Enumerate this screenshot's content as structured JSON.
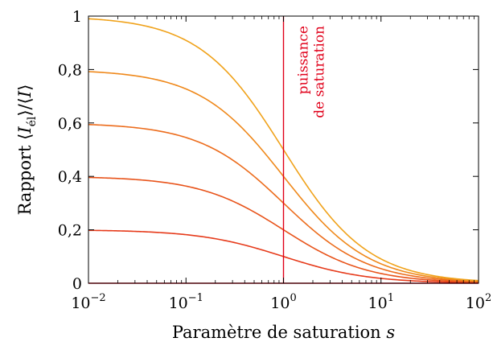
{
  "chart_data": {
    "type": "line",
    "xlabel": "Paramètre de saturation s",
    "ylabel": "Rapport ⟨I_él⟩/⟨I⟩",
    "ylabel_parts": {
      "prefix": "Rapport ⟨",
      "var": "I",
      "sub": "él",
      "middle": "⟩/⟨",
      "var2": "I",
      "suffix": "⟩"
    },
    "x_scale": "log",
    "xlim": [
      0.01,
      100
    ],
    "ylim": [
      0,
      1
    ],
    "x_ticks": [
      {
        "base": "10",
        "exp": "−2",
        "value": 0.01
      },
      {
        "base": "10",
        "exp": "−1",
        "value": 0.1
      },
      {
        "base": "10",
        "exp": "0",
        "value": 1
      },
      {
        "base": "10",
        "exp": "1",
        "value": 10
      },
      {
        "base": "10",
        "exp": "2",
        "value": 100
      }
    ],
    "y_ticks": [
      {
        "label": "0",
        "value": 0
      },
      {
        "label": "0,2",
        "value": 0.2
      },
      {
        "label": "0,4",
        "value": 0.4
      },
      {
        "label": "0,6",
        "value": 0.6
      },
      {
        "label": "0,8",
        "value": 0.8
      },
      {
        "label": "1",
        "value": 1
      }
    ],
    "series": [
      {
        "amplitude": 0.2,
        "color": "#e63a1a",
        "x": [
          0.01,
          0.1,
          0.3,
          1,
          3,
          10,
          30,
          100
        ],
        "y": [
          0.198,
          0.182,
          0.154,
          0.1,
          0.05,
          0.018,
          0.0065,
          0.002
        ]
      },
      {
        "amplitude": 0.4,
        "color": "#e8531a",
        "x": [
          0.01,
          0.1,
          0.3,
          1,
          3,
          10,
          30,
          100
        ],
        "y": [
          0.396,
          0.364,
          0.308,
          0.2,
          0.1,
          0.036,
          0.013,
          0.004
        ]
      },
      {
        "amplitude": 0.6,
        "color": "#ec6c1c",
        "x": [
          0.01,
          0.1,
          0.3,
          1,
          3,
          10,
          30,
          100
        ],
        "y": [
          0.594,
          0.545,
          0.462,
          0.3,
          0.15,
          0.055,
          0.019,
          0.006
        ]
      },
      {
        "amplitude": 0.8,
        "color": "#ef881a",
        "x": [
          0.01,
          0.1,
          0.3,
          1,
          3,
          10,
          30,
          100
        ],
        "y": [
          0.792,
          0.727,
          0.615,
          0.4,
          0.2,
          0.073,
          0.026,
          0.008
        ]
      },
      {
        "amplitude": 1.0,
        "color": "#f0a21a",
        "x": [
          0.01,
          0.1,
          0.3,
          1,
          3,
          10,
          30,
          100
        ],
        "y": [
          0.99,
          0.909,
          0.769,
          0.5,
          0.25,
          0.091,
          0.032,
          0.0099
        ]
      }
    ],
    "vline": {
      "x": 1,
      "color": "#e0001a",
      "label_lines": [
        "puissance",
        "de saturation"
      ]
    },
    "grid": false,
    "legend": "none"
  }
}
